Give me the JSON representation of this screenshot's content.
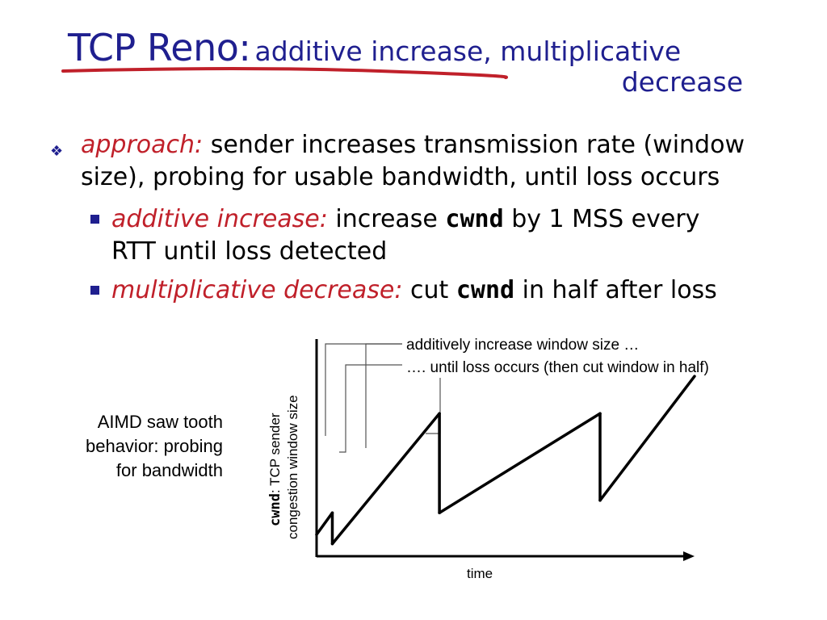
{
  "title": {
    "main": "TCP Reno:",
    "sub_line1": "additive increase, multiplicative",
    "sub_line2": "decrease",
    "underline_color": "#c0202a",
    "title_color": "#1f1f8f"
  },
  "bullets": {
    "approach_label": "approach:",
    "approach_text_line1": "sender increases transmission rate (window",
    "approach_text_line2": "size), probing for usable bandwidth, until loss occurs",
    "additive_label": "additive increase:",
    "additive_pre": "increase",
    "additive_code": "cwnd",
    "additive_post_line1": "by 1 MSS every",
    "additive_post_line2": "RTT until loss detected",
    "mult_label": "multiplicative decrease:",
    "mult_pre": "cut",
    "mult_code": "cwnd",
    "mult_post": "in half after loss",
    "accent_red": "#c0202a"
  },
  "side_label": {
    "line1": "AIMD saw tooth",
    "line2": "behavior: probing",
    "line3": "for bandwidth"
  },
  "chart_data": {
    "type": "line",
    "title": "",
    "xlabel": "time",
    "ylabel_code": "cwnd",
    "ylabel_line1": ": TCP sender",
    "ylabel_line2": "congestion window size",
    "annotations": [
      "additively increase window size …",
      "…. until loss occurs (then cut window in half)"
    ],
    "series": [
      {
        "x": [
          0,
          1,
          1,
          7.8,
          7.8,
          18,
          18,
          24,
          24
        ],
        "y": [
          0.7,
          1.4,
          0.4,
          4.6,
          1.4,
          4.6,
          1.8,
          5.8,
          5.8
        ],
        "comment_free": true
      }
    ],
    "xlim": [
      0,
      24
    ],
    "ylim": [
      0,
      7
    ],
    "grid": false
  }
}
